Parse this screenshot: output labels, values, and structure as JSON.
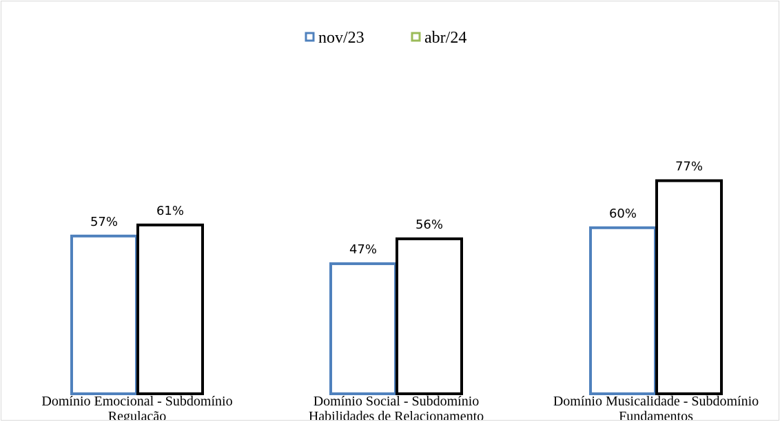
{
  "chart_data": {
    "type": "bar",
    "categories": [
      [
        "Domínio Emocional - Subdomínio",
        "Regulação"
      ],
      [
        "Domínio Social - Subdomínio",
        "Habilidades de Relacionamento"
      ],
      [
        "Domínio Musicalidade - Subdomínio",
        "Fundamentos"
      ]
    ],
    "series": [
      {
        "name": "nov/23",
        "values": [
          57,
          47,
          60
        ],
        "labels": [
          "57%",
          "47%",
          "60%"
        ],
        "color": "#4f81bd"
      },
      {
        "name": "abr/24",
        "values": [
          61,
          56,
          77
        ],
        "labels": [
          "61%",
          "56%",
          "77%"
        ],
        "color": "#000000",
        "legend_color": "#9bbb59"
      }
    ],
    "ylim": [
      0,
      100
    ],
    "unit": "%",
    "grid": false,
    "legend_position": "top-center",
    "title": "",
    "xlabel": "",
    "ylabel": ""
  }
}
